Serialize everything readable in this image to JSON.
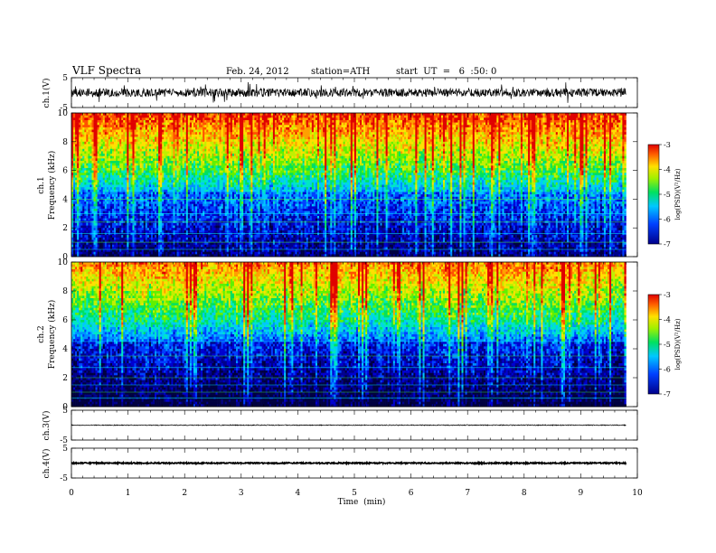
{
  "header": {
    "title": "VLF  Spectra",
    "date": "Feb. 24, 2012",
    "station": "station=ATH",
    "start_ut": "start  UT  =   6  :50: 0"
  },
  "chart_data": {
    "type": "heatmap",
    "xlabel": "Time  (min)",
    "xlim": [
      0,
      10
    ],
    "xticks": [
      "0",
      "1",
      "2",
      "3",
      "4",
      "5",
      "6",
      "7",
      "8",
      "9",
      "10"
    ],
    "data_end_min": 9.8,
    "panels": [
      {
        "type": "line",
        "ylabel": "ch.1(V)",
        "ylim": [
          -5,
          5
        ],
        "yticks": [
          "5",
          "-5"
        ],
        "baseline": 0,
        "amplitude": 1.4
      },
      {
        "type": "heatmap",
        "ylabel_top": "ch.1",
        "ylabel": "Frequency  (kHz)",
        "ylim": [
          0,
          10
        ],
        "yticks": [
          "0",
          "2",
          "4",
          "6",
          "8",
          "10"
        ],
        "colorbar": {
          "label": "log(PSD)(V²/Hz)",
          "range": [
            -7,
            -3
          ],
          "ticks": [
            "-3",
            "-4",
            "-5",
            "-6",
            "-7"
          ]
        }
      },
      {
        "type": "heatmap",
        "ylabel_top": "ch.2",
        "ylabel": "Frequency  (kHz)",
        "ylim": [
          0,
          10
        ],
        "yticks": [
          "0",
          "2",
          "4",
          "6",
          "8",
          "10"
        ],
        "colorbar": {
          "label": "log(PSD)(V²/Hz)",
          "range": [
            -7,
            -3
          ],
          "ticks": [
            "-3",
            "-4",
            "-5",
            "-6",
            "-7"
          ]
        }
      },
      {
        "type": "line",
        "ylabel": "ch.3(V)",
        "ylim": [
          -5,
          5
        ],
        "yticks": [
          "5",
          "-5"
        ],
        "baseline": 0,
        "amplitude": 0.15
      },
      {
        "type": "line",
        "ylabel": "ch.4(V)",
        "ylim": [
          -5,
          5
        ],
        "yticks": [
          "5",
          "-5"
        ],
        "baseline": 0,
        "amplitude": 0.2
      }
    ]
  }
}
